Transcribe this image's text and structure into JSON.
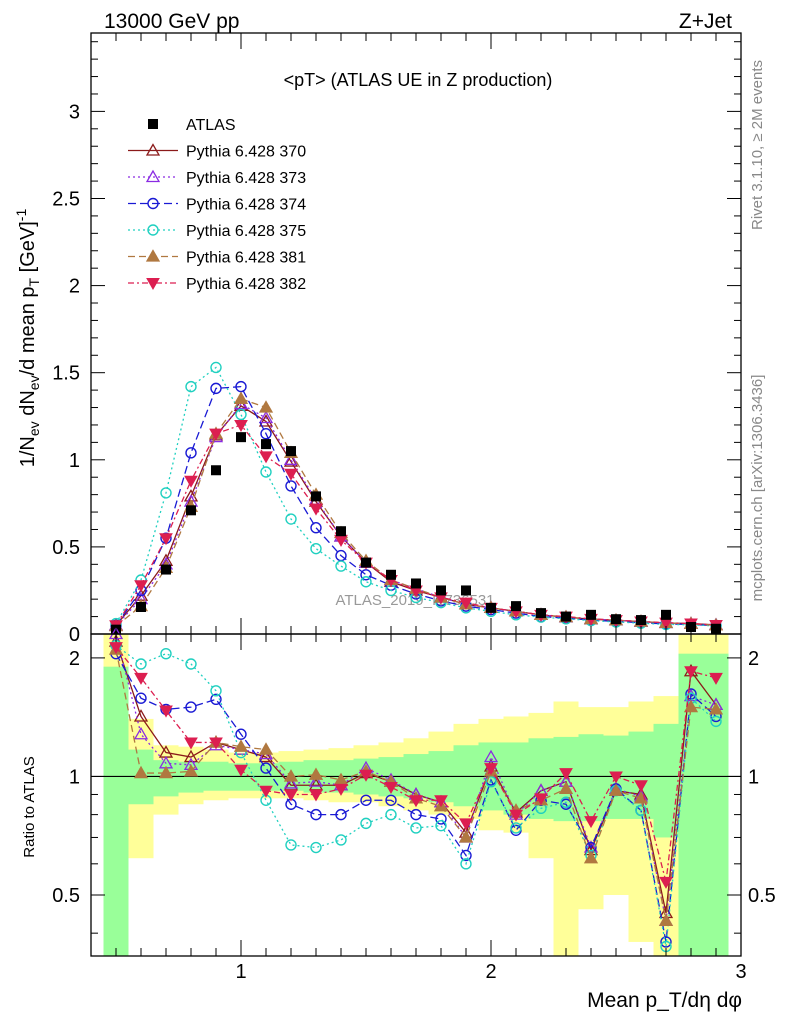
{
  "header": {
    "left": "13000 GeV pp",
    "right": "Z+Jet"
  },
  "side": {
    "rivet": "Rivet 3.1.10, ≥ 2M events",
    "mcplots": "mcplots.cern.ch [arXiv:1306.3436]"
  },
  "chart_data": {
    "type": "scatter",
    "title": "<pT> (ATLAS UE in Z production)",
    "watermark": "ATLAS_2019_I1736531",
    "xlabel": "Mean p_T/dη dφ",
    "ylabel": "1/N_ev dN_ev/d mean p_T [GeV]^-1",
    "ratio_ylabel": "Ratio to ATLAS",
    "xlim": [
      0.4,
      3.0
    ],
    "ylim": [
      0,
      3.45
    ],
    "ratio_ylim": [
      0.35,
      2.3
    ],
    "x_ticks": [
      1,
      2,
      3
    ],
    "y_ticks": [
      0,
      0.5,
      1,
      1.5,
      2,
      2.5,
      3
    ],
    "y_tick_labels": [
      "0",
      "0.5",
      "1",
      "1.5",
      "2",
      "2.5",
      "3"
    ],
    "ratio_ticks": [
      0.5,
      1,
      2
    ],
    "bin_edges": [
      0.45,
      0.55,
      0.65,
      0.75,
      0.85,
      0.95,
      1.05,
      1.15,
      1.25,
      1.35,
      1.45,
      1.55,
      1.65,
      1.75,
      1.85,
      1.95,
      2.05,
      2.15,
      2.25,
      2.35,
      2.45,
      2.55,
      2.65,
      2.75,
      2.85,
      2.95
    ],
    "x": [
      0.5,
      0.6,
      0.7,
      0.8,
      0.9,
      1.0,
      1.1,
      1.2,
      1.3,
      1.4,
      1.5,
      1.6,
      1.7,
      1.8,
      1.9,
      2.0,
      2.1,
      2.2,
      2.3,
      2.4,
      2.5,
      2.6,
      2.7,
      2.8,
      2.9
    ],
    "data": {
      "name": "ATLAS",
      "values": [
        0.025,
        0.155,
        0.37,
        0.71,
        0.94,
        1.13,
        1.09,
        1.05,
        0.79,
        0.59,
        0.41,
        0.34,
        0.29,
        0.25,
        0.25,
        0.15,
        0.16,
        0.12,
        0.1,
        0.11,
        0.085,
        0.08,
        0.11,
        0.04,
        0.03
      ]
    },
    "series": [
      {
        "name": "Pythia 6.428 370",
        "color": "#8b1a1a",
        "marker": "triangle-up-open",
        "dash": "",
        "values": [
          0.05,
          0.22,
          0.42,
          0.79,
          1.14,
          1.31,
          1.22,
          0.99,
          0.76,
          0.56,
          0.41,
          0.3,
          0.25,
          0.21,
          0.17,
          0.15,
          0.13,
          0.11,
          0.096,
          0.085,
          0.078,
          0.071,
          0.063,
          0.06,
          0.052
        ],
        "ratio": [
          2.2,
          1.42,
          1.15,
          1.12,
          1.22,
          1.17,
          1.12,
          0.95,
          0.95,
          0.95,
          1.02,
          0.97,
          0.9,
          0.86,
          0.72,
          1.06,
          0.81,
          0.92,
          0.97,
          0.65,
          0.92,
          0.9,
          0.45,
          1.85,
          1.52
        ]
      },
      {
        "name": "Pythia 6.428 373",
        "color": "#8a2be2",
        "marker": "triangle-up-open",
        "dash": "2,3",
        "values": [
          0.05,
          0.2,
          0.4,
          0.76,
          1.13,
          1.32,
          1.24,
          1.0,
          0.77,
          0.56,
          0.41,
          0.31,
          0.26,
          0.21,
          0.17,
          0.15,
          0.13,
          0.11,
          0.097,
          0.086,
          0.078,
          0.071,
          0.063,
          0.058,
          0.051
        ],
        "ratio": [
          2.3,
          1.28,
          1.08,
          1.07,
          1.2,
          1.17,
          1.14,
          0.96,
          0.97,
          0.95,
          1.05,
          0.98,
          0.9,
          0.86,
          0.7,
          1.12,
          0.8,
          0.92,
          0.97,
          0.66,
          0.93,
          0.89,
          0.43,
          1.6,
          1.52
        ]
      },
      {
        "name": "Pythia 6.428 374",
        "color": "#1a1ad4",
        "marker": "circle-open",
        "dash": "8,4",
        "values": [
          0.05,
          0.25,
          0.55,
          1.04,
          1.41,
          1.42,
          1.15,
          0.85,
          0.61,
          0.45,
          0.34,
          0.28,
          0.23,
          0.19,
          0.16,
          0.14,
          0.12,
          0.1,
          0.091,
          0.08,
          0.072,
          0.065,
          0.058,
          0.055,
          0.048
        ],
        "ratio": [
          2.05,
          1.58,
          1.48,
          1.5,
          1.57,
          1.28,
          1.05,
          0.85,
          0.8,
          0.8,
          0.87,
          0.87,
          0.8,
          0.78,
          0.63,
          0.98,
          0.73,
          0.87,
          0.85,
          0.66,
          0.93,
          0.82,
          0.38,
          1.62,
          1.42
        ]
      },
      {
        "name": "Pythia 6.428 375",
        "color": "#20d0c0",
        "marker": "circle-open",
        "dash": "2,3",
        "values": [
          0.06,
          0.31,
          0.81,
          1.42,
          1.53,
          1.26,
          0.93,
          0.66,
          0.49,
          0.39,
          0.3,
          0.25,
          0.21,
          0.18,
          0.15,
          0.13,
          0.11,
          0.097,
          0.087,
          0.077,
          0.069,
          0.062,
          0.055,
          0.053,
          0.046
        ],
        "ratio": [
          2.15,
          1.93,
          2.05,
          1.93,
          1.65,
          1.15,
          0.87,
          0.67,
          0.66,
          0.69,
          0.76,
          0.8,
          0.74,
          0.75,
          0.6,
          0.97,
          0.74,
          0.83,
          0.86,
          0.63,
          0.92,
          0.82,
          0.37,
          1.58,
          1.38
        ]
      },
      {
        "name": "Pythia 6.428 381",
        "color": "#b07840",
        "marker": "triangle-up-filled",
        "dash": "7,4",
        "values": [
          0.045,
          0.16,
          0.38,
          0.73,
          1.15,
          1.35,
          1.3,
          1.04,
          0.8,
          0.58,
          0.42,
          0.31,
          0.26,
          0.21,
          0.17,
          0.15,
          0.13,
          0.11,
          0.098,
          0.086,
          0.079,
          0.072,
          0.064,
          0.058,
          0.05
        ],
        "ratio": [
          2.1,
          1.02,
          1.02,
          1.03,
          1.22,
          1.19,
          1.17,
          1.0,
          1.01,
          0.98,
          1.03,
          0.97,
          0.88,
          0.84,
          0.7,
          1.03,
          0.82,
          0.87,
          0.93,
          0.62,
          0.92,
          0.88,
          0.43,
          1.5,
          1.48
        ]
      },
      {
        "name": "Pythia 6.428 382",
        "color": "#dc1e50",
        "marker": "triangle-down-filled",
        "dash": "6,3,2,3",
        "values": [
          0.05,
          0.28,
          0.55,
          0.88,
          1.15,
          1.2,
          1.02,
          0.92,
          0.72,
          0.54,
          0.41,
          0.31,
          0.25,
          0.21,
          0.18,
          0.15,
          0.13,
          0.11,
          0.1,
          0.087,
          0.08,
          0.072,
          0.065,
          0.06,
          0.052
        ],
        "ratio": [
          2.13,
          1.78,
          1.47,
          1.22,
          1.22,
          1.04,
          0.92,
          0.9,
          0.9,
          0.93,
          1.01,
          0.94,
          0.87,
          0.87,
          0.76,
          1.05,
          0.8,
          0.88,
          1.02,
          0.77,
          1.0,
          0.95,
          0.54,
          1.85,
          1.78
        ]
      }
    ],
    "ratio_band_yellow": [
      [
        0.35,
        2.3
      ],
      [
        0.62,
        1.4
      ],
      [
        0.8,
        1.2
      ],
      [
        0.85,
        1.19
      ],
      [
        0.87,
        1.17
      ],
      [
        0.88,
        1.15
      ],
      [
        0.88,
        1.15
      ],
      [
        0.88,
        1.16
      ],
      [
        0.87,
        1.17
      ],
      [
        0.86,
        1.18
      ],
      [
        0.86,
        1.2
      ],
      [
        0.84,
        1.22
      ],
      [
        0.82,
        1.25
      ],
      [
        0.8,
        1.3
      ],
      [
        0.78,
        1.36
      ],
      [
        0.73,
        1.4
      ],
      [
        0.72,
        1.42
      ],
      [
        0.62,
        1.45
      ],
      [
        0.35,
        1.55
      ],
      [
        0.46,
        1.5
      ],
      [
        0.5,
        1.5
      ],
      [
        0.38,
        1.55
      ],
      [
        0.35,
        1.6
      ],
      [
        0.35,
        2.3
      ],
      [
        0.35,
        2.3
      ]
    ],
    "ratio_band_green": [
      [
        0.35,
        1.9
      ],
      [
        0.85,
        1.17
      ],
      [
        0.89,
        1.1
      ],
      [
        0.91,
        1.09
      ],
      [
        0.92,
        1.09
      ],
      [
        0.92,
        1.08
      ],
      [
        0.92,
        1.08
      ],
      [
        0.92,
        1.09
      ],
      [
        0.91,
        1.1
      ],
      [
        0.91,
        1.1
      ],
      [
        0.9,
        1.11
      ],
      [
        0.89,
        1.12
      ],
      [
        0.88,
        1.14
      ],
      [
        0.86,
        1.16
      ],
      [
        0.84,
        1.2
      ],
      [
        0.82,
        1.22
      ],
      [
        0.8,
        1.22
      ],
      [
        0.78,
        1.25
      ],
      [
        0.77,
        1.26
      ],
      [
        0.77,
        1.28
      ],
      [
        0.78,
        1.27
      ],
      [
        0.78,
        1.3
      ],
      [
        0.7,
        1.36
      ],
      [
        0.35,
        2.05
      ],
      [
        0.35,
        2.05
      ]
    ]
  }
}
